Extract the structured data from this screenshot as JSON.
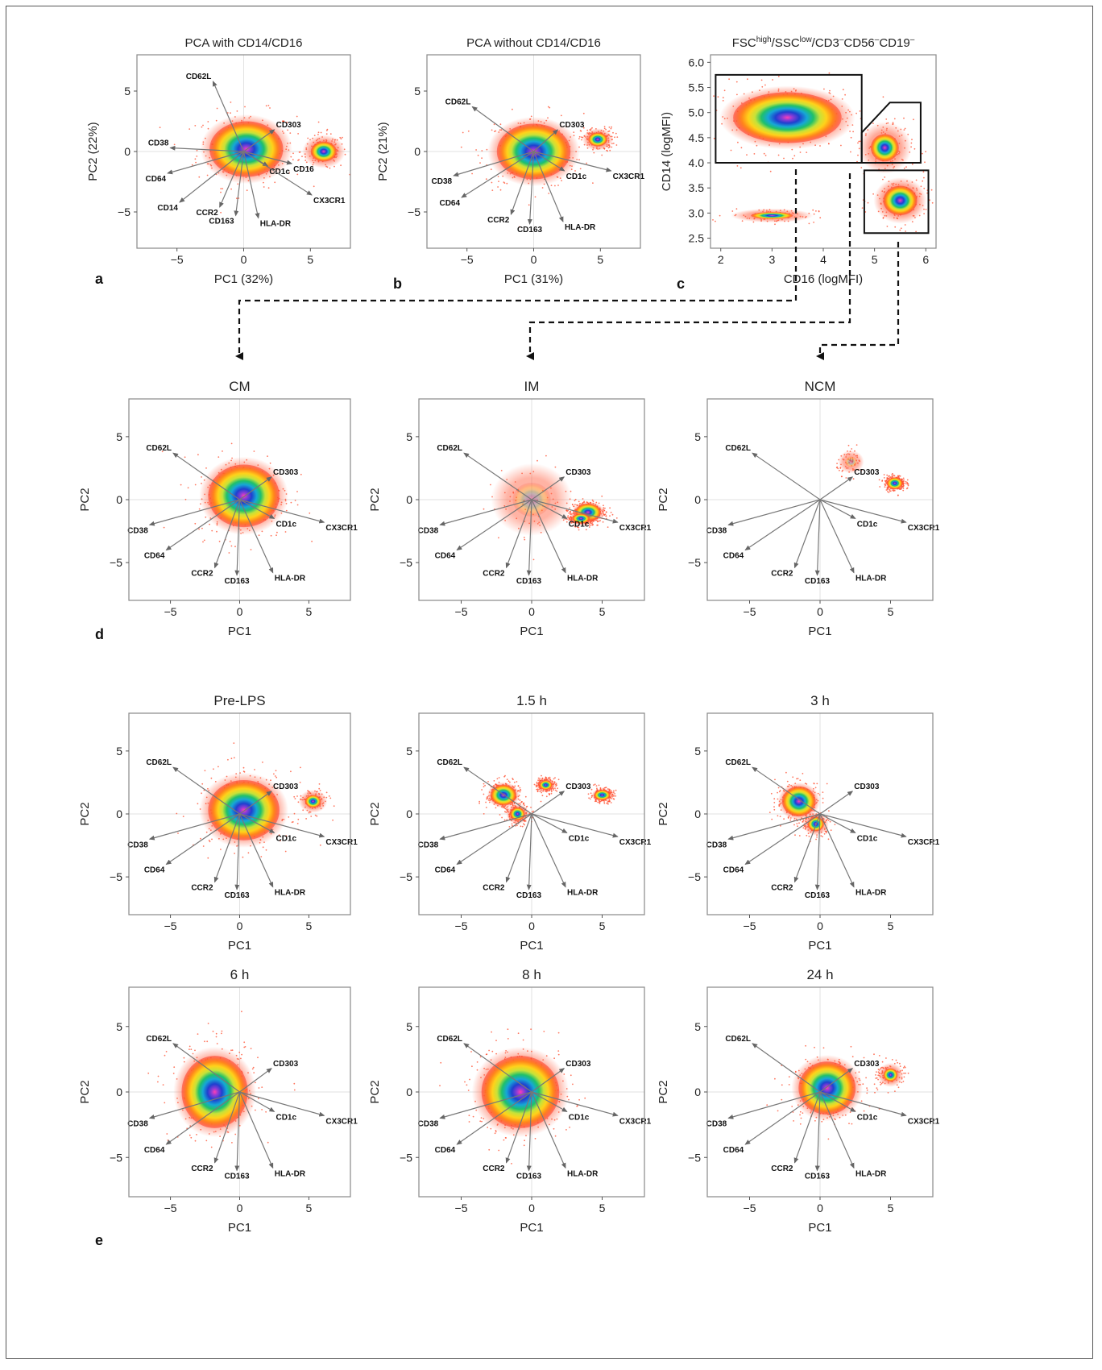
{
  "figure": {
    "panel_labels": [
      "a",
      "b",
      "c",
      "d",
      "e"
    ]
  },
  "vector_labels": [
    "CD62L",
    "CD303",
    "CD38",
    "CD64",
    "CD14",
    "CCR2",
    "CD163",
    "HLA-DR",
    "CD1c",
    "CD16",
    "CX3CR1"
  ],
  "chart_data": [
    {
      "id": "a",
      "type": "scatter",
      "title": "PCA with CD14/CD16",
      "xlabel": "PC1 (32%)",
      "ylabel": "PC2 (22%)",
      "xlim": [
        -8,
        8
      ],
      "ylim": [
        -8,
        8
      ],
      "xticks": [
        -5,
        0,
        5
      ],
      "yticks": [
        -5,
        0,
        5
      ],
      "clusters": [
        {
          "x": 0.2,
          "y": 0.2,
          "sx": 3.0,
          "sy": 2.5,
          "peak": 1.0
        },
        {
          "x": 6.0,
          "y": 0.0,
          "sx": 1.4,
          "sy": 1.2,
          "peak": 0.45
        }
      ],
      "vectors": [
        {
          "label": "CD62L",
          "x": -2.3,
          "y": 5.8
        },
        {
          "label": "CD303",
          "x": 2.3,
          "y": 1.8
        },
        {
          "label": "CD38",
          "x": -5.5,
          "y": 0.3
        },
        {
          "label": "CD64",
          "x": -5.7,
          "y": -1.8
        },
        {
          "label": "CD14",
          "x": -4.8,
          "y": -4.2
        },
        {
          "label": "CCR2",
          "x": -1.8,
          "y": -4.6
        },
        {
          "label": "CD163",
          "x": -0.6,
          "y": -5.3
        },
        {
          "label": "HLA-DR",
          "x": 1.1,
          "y": -5.5
        },
        {
          "label": "CD1c",
          "x": 1.8,
          "y": -1.2
        },
        {
          "label": "CD16",
          "x": 3.6,
          "y": -1.0
        },
        {
          "label": "CX3CR1",
          "x": 5.1,
          "y": -3.6
        }
      ]
    },
    {
      "id": "b",
      "type": "scatter",
      "title": "PCA without CD14/CD16",
      "xlabel": "PC1 (31%)",
      "ylabel": "PC2 (21%)",
      "xlim": [
        -8,
        8
      ],
      "ylim": [
        -8,
        8
      ],
      "xticks": [
        -5,
        0,
        5
      ],
      "yticks": [
        -5,
        0,
        5
      ],
      "clusters": [
        {
          "x": 0.0,
          "y": 0.0,
          "sx": 3.0,
          "sy": 2.5,
          "peak": 1.0
        },
        {
          "x": 4.8,
          "y": 1.0,
          "sx": 1.0,
          "sy": 0.8,
          "peak": 0.5
        }
      ],
      "vectors": [
        {
          "label": "CD62L",
          "x": -4.6,
          "y": 3.7
        },
        {
          "label": "CD303",
          "x": 1.8,
          "y": 1.8
        },
        {
          "label": "CD38",
          "x": -6.0,
          "y": -2.0
        },
        {
          "label": "CD64",
          "x": -5.4,
          "y": -3.8
        },
        {
          "label": "CCR2",
          "x": -1.7,
          "y": -5.2
        },
        {
          "label": "CD163",
          "x": -0.3,
          "y": -6.0
        },
        {
          "label": "HLA-DR",
          "x": 2.2,
          "y": -5.8
        },
        {
          "label": "CD1c",
          "x": 2.3,
          "y": -1.6
        },
        {
          "label": "CX3CR1",
          "x": 5.8,
          "y": -1.6
        }
      ]
    },
    {
      "id": "c",
      "type": "scatter",
      "title_parts": [
        "FSC",
        "high",
        "/SSC",
        "low",
        "/CD3",
        "–",
        "CD56",
        "–",
        "CD19",
        "–"
      ],
      "xlabel": "CD16 (logMFI)",
      "ylabel": "CD14 (logMFI)",
      "xlim": [
        1.8,
        6.2
      ],
      "ylim": [
        2.3,
        6.15
      ],
      "xticks": [
        2,
        3,
        4,
        5,
        6
      ],
      "yticks": [
        2.5,
        3.0,
        3.5,
        4.0,
        4.5,
        5.0,
        5.5,
        6.0
      ],
      "clusters": [
        {
          "x": 3.3,
          "y": 4.9,
          "sx": 1.15,
          "sy": 0.55,
          "peak": 1.0
        },
        {
          "x": 5.5,
          "y": 3.25,
          "sx": 0.45,
          "sy": 0.4,
          "peak": 0.55
        },
        {
          "x": 3.0,
          "y": 2.95,
          "sx": 0.7,
          "sy": 0.12,
          "peak": 0.2
        },
        {
          "x": 5.2,
          "y": 4.3,
          "sx": 0.45,
          "sy": 0.45,
          "peak": 0.25
        }
      ],
      "gates": [
        {
          "name": "CM",
          "points": [
            [
              1.9,
              5.75
            ],
            [
              4.75,
              5.75
            ],
            [
              4.75,
              4.0
            ],
            [
              1.9,
              4.0
            ]
          ]
        },
        {
          "name": "IM",
          "points": [
            [
              4.75,
              4.6
            ],
            [
              5.3,
              5.2
            ],
            [
              5.9,
              5.2
            ],
            [
              5.9,
              4.0
            ],
            [
              4.75,
              4.0
            ]
          ]
        },
        {
          "name": "NCM",
          "points": [
            [
              4.8,
              3.85
            ],
            [
              6.05,
              3.85
            ],
            [
              6.05,
              2.6
            ],
            [
              4.8,
              2.6
            ]
          ]
        }
      ]
    },
    {
      "id": "d-CM",
      "type": "scatter",
      "title": "CM",
      "xlabel": "PC1",
      "ylabel": "PC2",
      "xlim": [
        -8,
        8
      ],
      "ylim": [
        -8,
        8
      ],
      "xticks": [
        -5,
        0,
        5
      ],
      "yticks": [
        -5,
        0,
        5
      ],
      "clusters": [
        {
          "x": 0.3,
          "y": 0.3,
          "sx": 2.8,
          "sy": 2.7,
          "peak": 1.0
        }
      ],
      "vectors": [
        {
          "label": "CD62L",
          "x": -4.8,
          "y": 3.7
        },
        {
          "label": "CD303",
          "x": 2.3,
          "y": 1.8
        },
        {
          "label": "CD38",
          "x": -6.5,
          "y": -2.0
        },
        {
          "label": "CD64",
          "x": -5.3,
          "y": -4.0
        },
        {
          "label": "CCR2",
          "x": -1.8,
          "y": -5.4
        },
        {
          "label": "CD163",
          "x": -0.2,
          "y": -6.0
        },
        {
          "label": "HLA-DR",
          "x": 2.4,
          "y": -5.8
        },
        {
          "label": "CD1c",
          "x": 2.5,
          "y": -1.5
        },
        {
          "label": "CX3CR1",
          "x": 6.1,
          "y": -1.8
        }
      ]
    },
    {
      "id": "d-IM",
      "type": "scatter",
      "title": "IM",
      "xlabel": "PC1",
      "ylabel": "PC2",
      "xlim": [
        -8,
        8
      ],
      "ylim": [
        -8,
        8
      ],
      "xticks": [
        -5,
        0,
        5
      ],
      "yticks": [
        -5,
        0,
        5
      ],
      "clusters": [
        {
          "x": 4.0,
          "y": -1.0,
          "sx": 1.0,
          "sy": 0.75,
          "peak": 1.0
        },
        {
          "x": 3.5,
          "y": -1.5,
          "sx": 0.8,
          "sy": 0.5,
          "peak": 0.6
        },
        {
          "x": 0.0,
          "y": 0.0,
          "sx": 2.5,
          "sy": 2.5,
          "peak": 0.08
        }
      ],
      "vectors": [
        {
          "label": "CD62L",
          "x": -4.8,
          "y": 3.7
        },
        {
          "label": "CD303",
          "x": 2.3,
          "y": 1.8
        },
        {
          "label": "CD38",
          "x": -6.5,
          "y": -2.0
        },
        {
          "label": "CD64",
          "x": -5.3,
          "y": -4.0
        },
        {
          "label": "CCR2",
          "x": -1.8,
          "y": -5.4
        },
        {
          "label": "CD163",
          "x": -0.2,
          "y": -6.0
        },
        {
          "label": "HLA-DR",
          "x": 2.4,
          "y": -5.8
        },
        {
          "label": "CD1c",
          "x": 2.5,
          "y": -1.5
        },
        {
          "label": "CX3CR1",
          "x": 6.1,
          "y": -1.8
        }
      ]
    },
    {
      "id": "d-NCM",
      "type": "scatter",
      "title": "NCM",
      "xlabel": "PC1",
      "ylabel": "PC2",
      "xlim": [
        -8,
        8
      ],
      "ylim": [
        -8,
        8
      ],
      "xticks": [
        -5,
        0,
        5
      ],
      "yticks": [
        -5,
        0,
        5
      ],
      "clusters": [
        {
          "x": 5.3,
          "y": 1.3,
          "sx": 0.6,
          "sy": 0.5,
          "peak": 1.0
        },
        {
          "x": 2.2,
          "y": 3.0,
          "sx": 0.8,
          "sy": 0.8,
          "peak": 0.1
        }
      ],
      "vectors": [
        {
          "label": "CD62L",
          "x": -4.8,
          "y": 3.7
        },
        {
          "label": "CD303",
          "x": 2.3,
          "y": 1.8
        },
        {
          "label": "CD38",
          "x": -6.5,
          "y": -2.0
        },
        {
          "label": "CD64",
          "x": -5.3,
          "y": -4.0
        },
        {
          "label": "CCR2",
          "x": -1.8,
          "y": -5.4
        },
        {
          "label": "CD163",
          "x": -0.2,
          "y": -6.0
        },
        {
          "label": "HLA-DR",
          "x": 2.4,
          "y": -5.8
        },
        {
          "label": "CD1c",
          "x": 2.5,
          "y": -1.5
        },
        {
          "label": "CX3CR1",
          "x": 6.1,
          "y": -1.8
        }
      ]
    },
    {
      "id": "e-pre",
      "type": "scatter",
      "title": "Pre-LPS",
      "xlabel": "PC1",
      "ylabel": "PC2",
      "xlim": [
        -8,
        8
      ],
      "ylim": [
        -8,
        8
      ],
      "xticks": [
        -5,
        0,
        5
      ],
      "yticks": [
        -5,
        0,
        5
      ],
      "clusters": [
        {
          "x": 0.3,
          "y": 0.3,
          "sx": 2.8,
          "sy": 2.6,
          "peak": 1.0
        },
        {
          "x": 5.3,
          "y": 1.0,
          "sx": 0.9,
          "sy": 0.8,
          "peak": 0.3
        }
      ],
      "vectors": [
        {
          "label": "CD62L",
          "x": -4.8,
          "y": 3.7
        },
        {
          "label": "CD303",
          "x": 2.3,
          "y": 1.8
        },
        {
          "label": "CD38",
          "x": -6.5,
          "y": -2.0
        },
        {
          "label": "CD64",
          "x": -5.3,
          "y": -4.0
        },
        {
          "label": "CCR2",
          "x": -1.8,
          "y": -5.4
        },
        {
          "label": "CD163",
          "x": -0.2,
          "y": -6.0
        },
        {
          "label": "HLA-DR",
          "x": 2.4,
          "y": -5.8
        },
        {
          "label": "CD1c",
          "x": 2.5,
          "y": -1.5
        },
        {
          "label": "CX3CR1",
          "x": 6.1,
          "y": -1.8
        }
      ]
    },
    {
      "id": "e-1.5h",
      "type": "scatter",
      "title": "1.5 h",
      "xlabel": "PC1",
      "ylabel": "PC2",
      "xlim": [
        -8,
        8
      ],
      "ylim": [
        -8,
        8
      ],
      "xticks": [
        -5,
        0,
        5
      ],
      "yticks": [
        -5,
        0,
        5
      ],
      "clusters": [
        {
          "x": -2.0,
          "y": 1.5,
          "sx": 1.0,
          "sy": 0.9,
          "peak": 1.0
        },
        {
          "x": -1.0,
          "y": 0.0,
          "sx": 0.7,
          "sy": 0.7,
          "peak": 0.55
        },
        {
          "x": 1.0,
          "y": 2.3,
          "sx": 0.6,
          "sy": 0.5,
          "peak": 0.6
        },
        {
          "x": 5.0,
          "y": 1.5,
          "sx": 0.65,
          "sy": 0.45,
          "peak": 0.9
        }
      ],
      "vectors": [
        {
          "label": "CD62L",
          "x": -4.8,
          "y": 3.7
        },
        {
          "label": "CD303",
          "x": 2.3,
          "y": 1.8
        },
        {
          "label": "CD38",
          "x": -6.5,
          "y": -2.0
        },
        {
          "label": "CD64",
          "x": -5.3,
          "y": -4.0
        },
        {
          "label": "CCR2",
          "x": -1.8,
          "y": -5.4
        },
        {
          "label": "CD163",
          "x": -0.2,
          "y": -6.0
        },
        {
          "label": "HLA-DR",
          "x": 2.4,
          "y": -5.8
        },
        {
          "label": "CD1c",
          "x": 2.5,
          "y": -1.5
        },
        {
          "label": "CX3CR1",
          "x": 6.1,
          "y": -1.8
        }
      ]
    },
    {
      "id": "e-3h",
      "type": "scatter",
      "title": "3 h",
      "xlabel": "PC1",
      "ylabel": "PC2",
      "xlim": [
        -8,
        8
      ],
      "ylim": [
        -8,
        8
      ],
      "xticks": [
        -5,
        0,
        5
      ],
      "yticks": [
        -5,
        0,
        5
      ],
      "clusters": [
        {
          "x": -1.5,
          "y": 1.0,
          "sx": 1.3,
          "sy": 1.3,
          "peak": 1.0
        },
        {
          "x": -0.3,
          "y": -0.8,
          "sx": 0.8,
          "sy": 0.8,
          "peak": 0.5
        }
      ],
      "vectors": [
        {
          "label": "CD62L",
          "x": -4.8,
          "y": 3.7
        },
        {
          "label": "CD303",
          "x": 2.3,
          "y": 1.8
        },
        {
          "label": "CD38",
          "x": -6.5,
          "y": -2.0
        },
        {
          "label": "CD64",
          "x": -5.3,
          "y": -4.0
        },
        {
          "label": "CCR2",
          "x": -1.8,
          "y": -5.4
        },
        {
          "label": "CD163",
          "x": -0.2,
          "y": -6.0
        },
        {
          "label": "HLA-DR",
          "x": 2.4,
          "y": -5.8
        },
        {
          "label": "CD1c",
          "x": 2.5,
          "y": -1.5
        },
        {
          "label": "CX3CR1",
          "x": 6.1,
          "y": -1.8
        }
      ]
    },
    {
      "id": "e-6h",
      "type": "scatter",
      "title": "6 h",
      "xlabel": "PC1",
      "ylabel": "PC2",
      "xlim": [
        -8,
        8
      ],
      "ylim": [
        -8,
        8
      ],
      "xticks": [
        -5,
        0,
        5
      ],
      "yticks": [
        -5,
        0,
        5
      ],
      "clusters": [
        {
          "x": -1.8,
          "y": 0.0,
          "sx": 2.6,
          "sy": 3.0,
          "peak": 1.0
        }
      ],
      "vectors": [
        {
          "label": "CD62L",
          "x": -4.8,
          "y": 3.7
        },
        {
          "label": "CD303",
          "x": 2.3,
          "y": 1.8
        },
        {
          "label": "CD38",
          "x": -6.5,
          "y": -2.0
        },
        {
          "label": "CD64",
          "x": -5.3,
          "y": -4.0
        },
        {
          "label": "CCR2",
          "x": -1.8,
          "y": -5.4
        },
        {
          "label": "CD163",
          "x": -0.2,
          "y": -6.0
        },
        {
          "label": "HLA-DR",
          "x": 2.4,
          "y": -5.8
        },
        {
          "label": "CD1c",
          "x": 2.5,
          "y": -1.5
        },
        {
          "label": "CX3CR1",
          "x": 6.1,
          "y": -1.8
        }
      ]
    },
    {
      "id": "e-8h",
      "type": "scatter",
      "title": "8 h",
      "xlabel": "PC1",
      "ylabel": "PC2",
      "xlim": [
        -8,
        8
      ],
      "ylim": [
        -8,
        8
      ],
      "xticks": [
        -5,
        0,
        5
      ],
      "yticks": [
        -5,
        0,
        5
      ],
      "clusters": [
        {
          "x": -0.8,
          "y": 0.0,
          "sx": 3.0,
          "sy": 3.0,
          "peak": 1.0
        }
      ],
      "vectors": [
        {
          "label": "CD62L",
          "x": -4.8,
          "y": 3.7
        },
        {
          "label": "CD303",
          "x": 2.3,
          "y": 1.8
        },
        {
          "label": "CD38",
          "x": -6.5,
          "y": -2.0
        },
        {
          "label": "CD64",
          "x": -5.3,
          "y": -4.0
        },
        {
          "label": "CCR2",
          "x": -1.8,
          "y": -5.4
        },
        {
          "label": "CD163",
          "x": -0.2,
          "y": -6.0
        },
        {
          "label": "HLA-DR",
          "x": 2.4,
          "y": -5.8
        },
        {
          "label": "CD1c",
          "x": 2.5,
          "y": -1.5
        },
        {
          "label": "CX3CR1",
          "x": 6.1,
          "y": -1.8
        }
      ]
    },
    {
      "id": "e-24h",
      "type": "scatter",
      "title": "24 h",
      "xlabel": "PC1",
      "ylabel": "PC2",
      "xlim": [
        -8,
        8
      ],
      "ylim": [
        -8,
        8
      ],
      "xticks": [
        -5,
        0,
        5
      ],
      "yticks": [
        -5,
        0,
        5
      ],
      "clusters": [
        {
          "x": 0.5,
          "y": 0.3,
          "sx": 2.2,
          "sy": 2.2,
          "peak": 1.0
        },
        {
          "x": 5.0,
          "y": 1.3,
          "sx": 0.8,
          "sy": 0.8,
          "peak": 0.3
        }
      ],
      "vectors": [
        {
          "label": "CD62L",
          "x": -4.8,
          "y": 3.7
        },
        {
          "label": "CD303",
          "x": 2.3,
          "y": 1.8
        },
        {
          "label": "CD38",
          "x": -6.5,
          "y": -2.0
        },
        {
          "label": "CD64",
          "x": -5.3,
          "y": -4.0
        },
        {
          "label": "CCR2",
          "x": -1.8,
          "y": -5.4
        },
        {
          "label": "CD163",
          "x": -0.2,
          "y": -6.0
        },
        {
          "label": "HLA-DR",
          "x": 2.4,
          "y": -5.8
        },
        {
          "label": "CD1c",
          "x": 2.5,
          "y": -1.5
        },
        {
          "label": "CX3CR1",
          "x": 6.1,
          "y": -1.8
        }
      ]
    }
  ]
}
